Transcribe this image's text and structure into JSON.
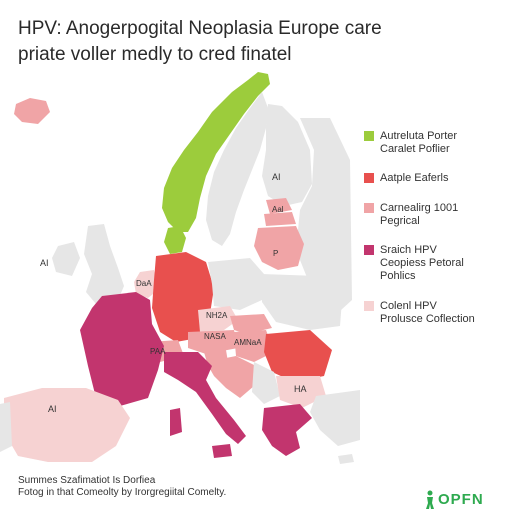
{
  "title": {
    "line1": "HPV: Anogerpogital Neoplasia Europe care",
    "line2": "priate voller medly to cred finatel"
  },
  "legend": {
    "items": [
      {
        "line1": "Autreluta Porter",
        "line2": "Caralet Poflier",
        "color": "#9ccc3c"
      },
      {
        "line1": "Aatple Eaferls",
        "line2": "",
        "color": "#e8504e"
      },
      {
        "line1": "Carnealirg 1001",
        "line2": "Pegrical",
        "color": "#f0a4a6"
      },
      {
        "line1": "Sraich HPV",
        "line2": "Ceopiess Petoral",
        "line3": "Pohlics",
        "color": "#c2356e"
      },
      {
        "line1": "Colenl HPV",
        "line2": "Prolusce Coflection",
        "color": "#f6d2d2"
      }
    ]
  },
  "map_labels": {
    "finland": "AI",
    "latvia": "Aal",
    "belarus": "P",
    "uk": "AI",
    "benelux": "DaA",
    "austria": "NH2A",
    "hungary": "NASA",
    "slovenia": "AMNaA",
    "croatia": "PAA",
    "balkans": "HA",
    "spain": "AI",
    "turkey": "AI"
  },
  "footer": {
    "line1": "Summes Szafimatiot Is Dorfiea",
    "line2": "Fotog in that Comeolty by Irorgregiital Comelty."
  },
  "logo": {
    "text": "OPFN",
    "color": "#2eaa4f"
  },
  "colors": {
    "green": "#9ccc3c",
    "red": "#e8504e",
    "pink": "#f0a4a6",
    "magenta": "#c2356e",
    "lightpink": "#f6d2d2",
    "grey": "#e6e6e6"
  }
}
